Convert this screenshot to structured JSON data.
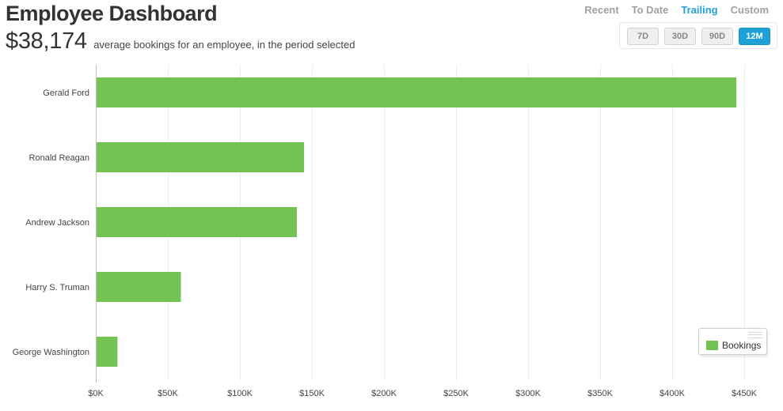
{
  "header": {
    "title": "Employee Dashboard",
    "summary_value": "$38,174",
    "summary_text": "average bookings for an employee, in the period selected"
  },
  "period_modes": [
    {
      "label": "Recent",
      "active": false
    },
    {
      "label": "To Date",
      "active": false
    },
    {
      "label": "Trailing",
      "active": true
    },
    {
      "label": "Custom",
      "active": false
    }
  ],
  "ranges": [
    {
      "label": "7D",
      "active": false
    },
    {
      "label": "30D",
      "active": false
    },
    {
      "label": "90D",
      "active": false
    },
    {
      "label": "12M",
      "active": true
    }
  ],
  "colors": {
    "bar": "#73c254",
    "accent": "#1fa1d8",
    "grid": "#ececec",
    "axis": "#c0c0c0"
  },
  "chart_data": {
    "type": "bar",
    "orientation": "horizontal",
    "categories": [
      "Gerald Ford",
      "Ronald Reagan",
      "Andrew Jackson",
      "Harry S. Truman",
      "George Washington"
    ],
    "series": [
      {
        "name": "Bookings",
        "values": [
          444000,
          144000,
          139000,
          58500,
          14500
        ]
      }
    ],
    "xlim": [
      0,
      450000
    ],
    "xticks": [
      0,
      50000,
      100000,
      150000,
      200000,
      250000,
      300000,
      350000,
      400000,
      450000
    ],
    "xtick_labels": [
      "$0K",
      "$50K",
      "$100K",
      "$150K",
      "$200K",
      "$250K",
      "$300K",
      "$350K",
      "$400K",
      "$450K"
    ],
    "grid": true,
    "legend_position": "bottom-right"
  }
}
